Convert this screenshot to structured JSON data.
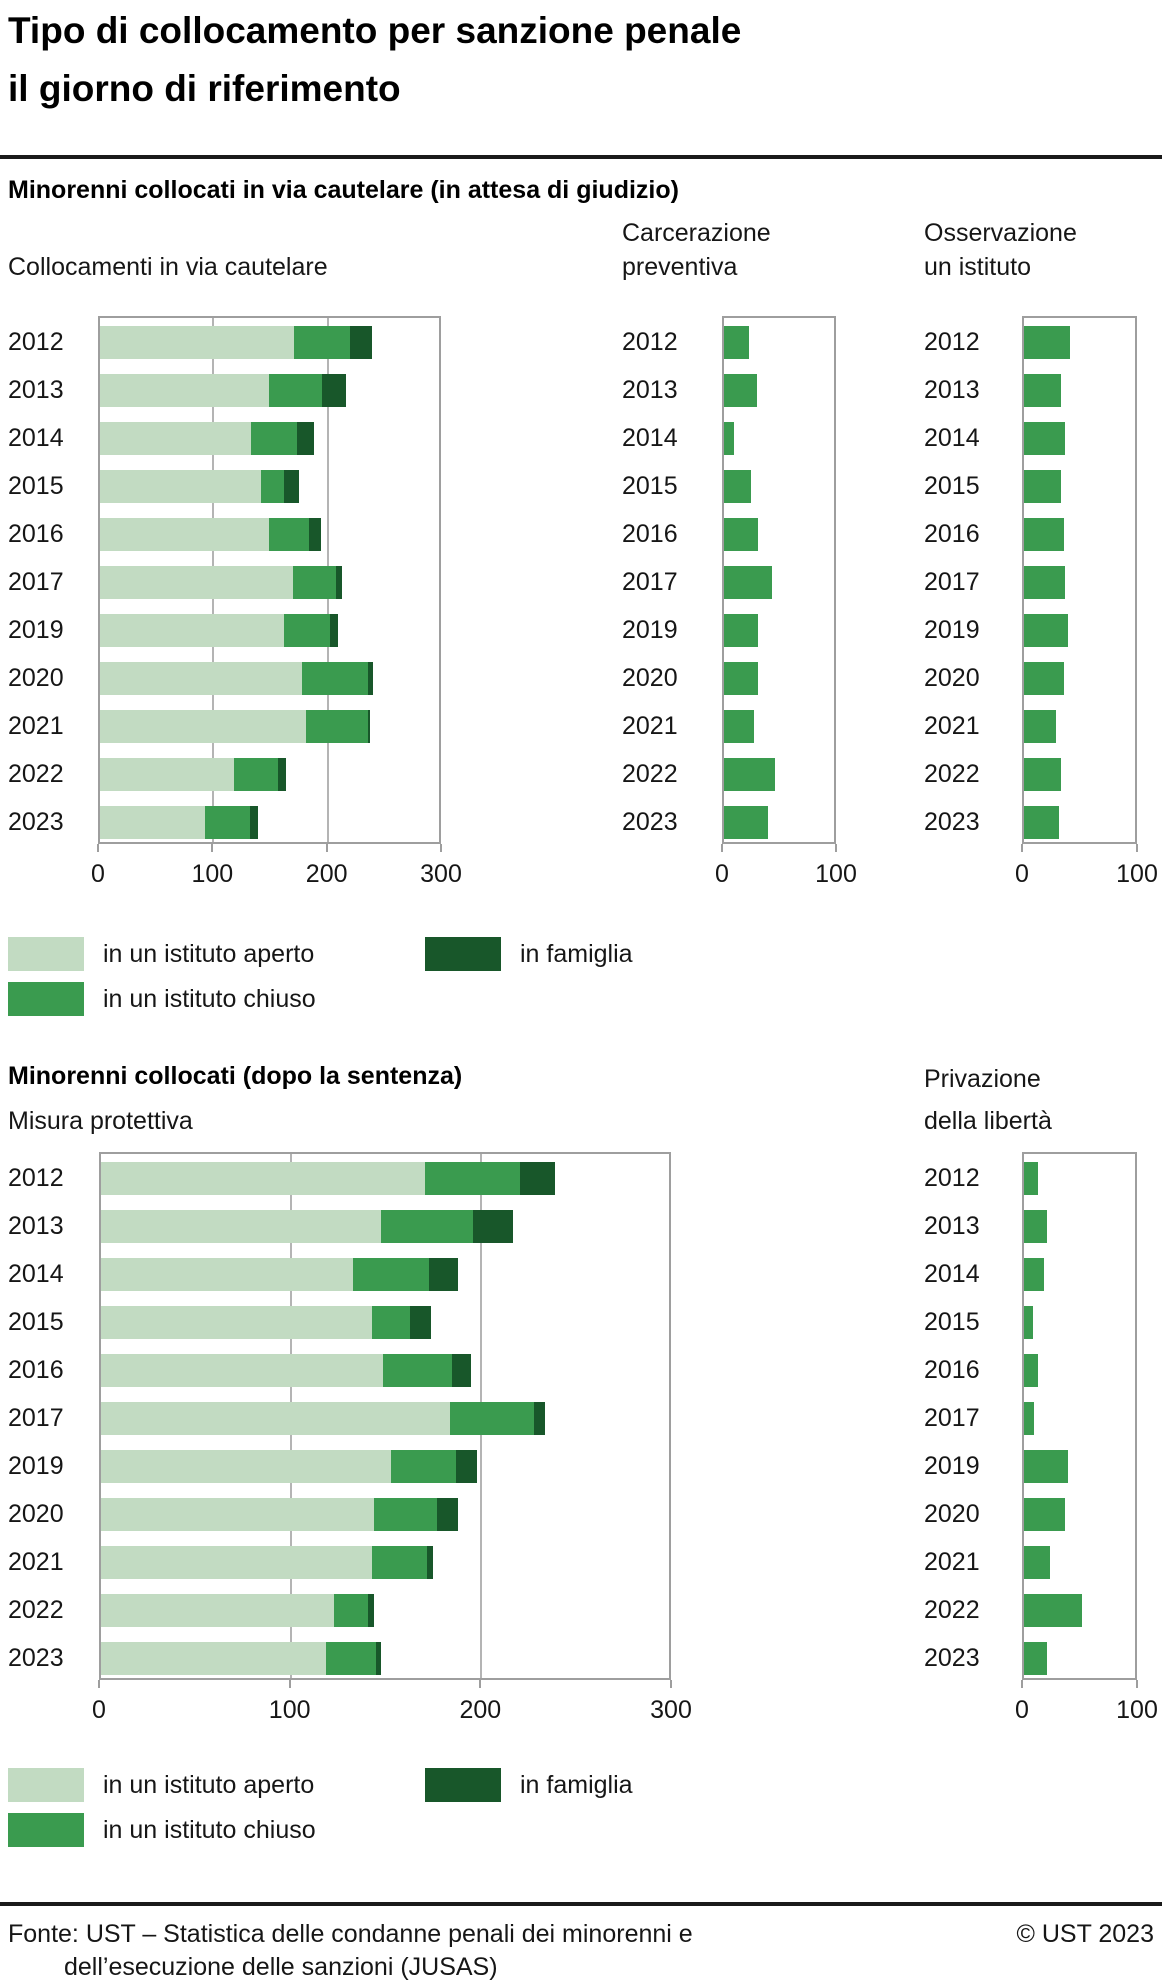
{
  "title": "Tipo di collocamento per sanzione penale\nil giorno di riferimento",
  "sections": [
    {
      "heading": "Minorenni collocati in via cautelare (in attesa di giudizio)"
    },
    {
      "heading": "Minorenni collocati (dopo la sentenza)"
    }
  ],
  "colors": {
    "aperto": "#c2dbc2",
    "chiuso": "#3a9b4f",
    "famiglia": "#18572a",
    "axis": "#9e9e9e",
    "grid": "#b4b4b4",
    "text": "#161616"
  },
  "legend": {
    "items": [
      {
        "label": "in un istituto aperto",
        "color_key": "aperto"
      },
      {
        "label": "in un istituto chiuso",
        "color_key": "chiuso"
      },
      {
        "label": "in famiglia",
        "color_key": "famiglia"
      }
    ]
  },
  "footer": {
    "source_line1": "Fonte: UST – Statistica delle condanne penali dei minorenni e",
    "source_line2": "dell’esecuzione delle sanzioni (JUSAS)",
    "copyright": "© UST 2023"
  },
  "chart_data": [
    {
      "id": "collocamenti-cautelare",
      "type": "bar",
      "orientation": "horizontal",
      "stacked": true,
      "title": "Collocamenti in via cautelare",
      "categories": [
        "2012",
        "2013",
        "2014",
        "2015",
        "2016",
        "2017",
        "2019",
        "2020",
        "2021",
        "2022",
        "2023"
      ],
      "series": [
        {
          "name": "in un istituto aperto",
          "color_key": "aperto",
          "values": [
            170,
            148,
            132,
            141,
            148,
            169,
            161,
            177,
            180,
            117,
            92
          ]
        },
        {
          "name": "in un istituto chiuso",
          "color_key": "chiuso",
          "values": [
            49,
            46,
            40,
            20,
            35,
            37,
            40,
            57,
            54,
            39,
            39
          ]
        },
        {
          "name": "in famiglia",
          "color_key": "famiglia",
          "values": [
            19,
            21,
            15,
            13,
            10,
            6,
            7,
            5,
            2,
            7,
            7
          ]
        }
      ],
      "xlim": [
        0,
        300
      ],
      "xticks": [
        0,
        100,
        200,
        300
      ],
      "gridlines": [
        100,
        200
      ],
      "legend_position": "below",
      "grid": true
    },
    {
      "id": "carcerazione-preventiva",
      "type": "bar",
      "orientation": "horizontal",
      "stacked": false,
      "title": "Carcerazione\npreventiva",
      "categories": [
        "2012",
        "2013",
        "2014",
        "2015",
        "2016",
        "2017",
        "2019",
        "2020",
        "2021",
        "2022",
        "2023"
      ],
      "series": [
        {
          "name": "in un istituto chiuso",
          "color_key": "chiuso",
          "values": [
            22,
            29,
            9,
            24,
            30,
            42,
            30,
            30,
            26,
            45,
            39
          ]
        }
      ],
      "xlim": [
        0,
        100
      ],
      "xticks": [
        0,
        100
      ],
      "gridlines": [],
      "grid": false
    },
    {
      "id": "osservazione-istituto",
      "type": "bar",
      "orientation": "horizontal",
      "stacked": false,
      "title": "Osservazione\nun istituto",
      "categories": [
        "2012",
        "2013",
        "2014",
        "2015",
        "2016",
        "2017",
        "2019",
        "2020",
        "2021",
        "2022",
        "2023"
      ],
      "series": [
        {
          "name": "in un istituto chiuso",
          "color_key": "chiuso",
          "values": [
            40,
            32,
            36,
            32,
            35,
            36,
            38,
            35,
            28,
            32,
            30
          ]
        }
      ],
      "xlim": [
        0,
        100
      ],
      "xticks": [
        0,
        100
      ],
      "gridlines": [],
      "grid": false
    },
    {
      "id": "misura-protettiva",
      "type": "bar",
      "orientation": "horizontal",
      "stacked": true,
      "title": "Misura protettiva",
      "categories": [
        "2012",
        "2013",
        "2014",
        "2015",
        "2016",
        "2017",
        "2019",
        "2020",
        "2021",
        "2022",
        "2023"
      ],
      "series": [
        {
          "name": "in un istituto aperto",
          "color_key": "aperto",
          "values": [
            170,
            147,
            132,
            142,
            148,
            183,
            152,
            143,
            142,
            122,
            118
          ]
        },
        {
          "name": "in un istituto chiuso",
          "color_key": "chiuso",
          "values": [
            50,
            48,
            40,
            20,
            36,
            44,
            34,
            33,
            29,
            18,
            26
          ]
        },
        {
          "name": "in famiglia",
          "color_key": "famiglia",
          "values": [
            18,
            21,
            15,
            11,
            10,
            6,
            11,
            11,
            3,
            3,
            3
          ]
        }
      ],
      "xlim": [
        0,
        300
      ],
      "xticks": [
        0,
        100,
        200,
        300
      ],
      "gridlines": [
        100,
        200
      ],
      "legend_position": "below",
      "grid": true
    },
    {
      "id": "privazione-liberta",
      "type": "bar",
      "orientation": "horizontal",
      "stacked": false,
      "title": "Privazione\ndella libertà",
      "categories": [
        "2012",
        "2013",
        "2014",
        "2015",
        "2016",
        "2017",
        "2019",
        "2020",
        "2021",
        "2022",
        "2023"
      ],
      "series": [
        {
          "name": "in un istituto chiuso",
          "color_key": "chiuso",
          "values": [
            12,
            20,
            17,
            8,
            12,
            9,
            38,
            36,
            23,
            50,
            20
          ]
        }
      ],
      "xlim": [
        0,
        100
      ],
      "xticks": [
        0,
        100
      ],
      "gridlines": [],
      "grid": false
    }
  ]
}
